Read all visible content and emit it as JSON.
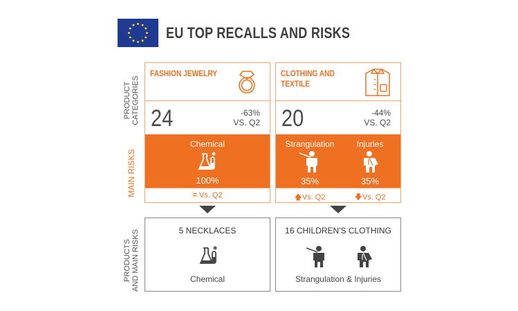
{
  "title": "EU TOP RECALLS AND RISKS",
  "colors": {
    "accent": "#f07022",
    "flag": "#1f3a93",
    "stars": "#f7d117"
  },
  "side_labels": {
    "product_categories": [
      "PRODUCT",
      "CATEGORIES"
    ],
    "main_risks": "MAIN RISKS",
    "products_risks": [
      "PRODUCTS",
      "AND MAIN RISKS"
    ]
  },
  "categories": [
    {
      "name": "FASHION JEWELRY",
      "icon": "ring-icon",
      "count": "24",
      "change": "-63%",
      "vs": "VS. Q2",
      "risks": [
        {
          "label": "Chemical",
          "icon": "chemical-flask-icon",
          "pct": "100%",
          "trend": "equal",
          "trend_label": "Vs. Q2"
        }
      ],
      "product": "5 NECKLACES",
      "product_risk": "Chemical"
    },
    {
      "name": "CLOTHING AND TEXTILE",
      "icon": "shirt-icon",
      "count": "20",
      "change": "-44%",
      "vs": "VS. Q2",
      "risks": [
        {
          "label": "Strangulation",
          "icon": "strangulation-person-icon",
          "pct": "35%",
          "trend": "up",
          "trend_label": "Vs. Q2"
        },
        {
          "label": "Injuries",
          "icon": "injured-person-icon",
          "pct": "35%",
          "trend": "down",
          "trend_label": "Vs. Q2"
        }
      ],
      "product": "16 CHILDREN'S CLOTHING",
      "product_risk": "Strangulation & Injuries"
    }
  ]
}
